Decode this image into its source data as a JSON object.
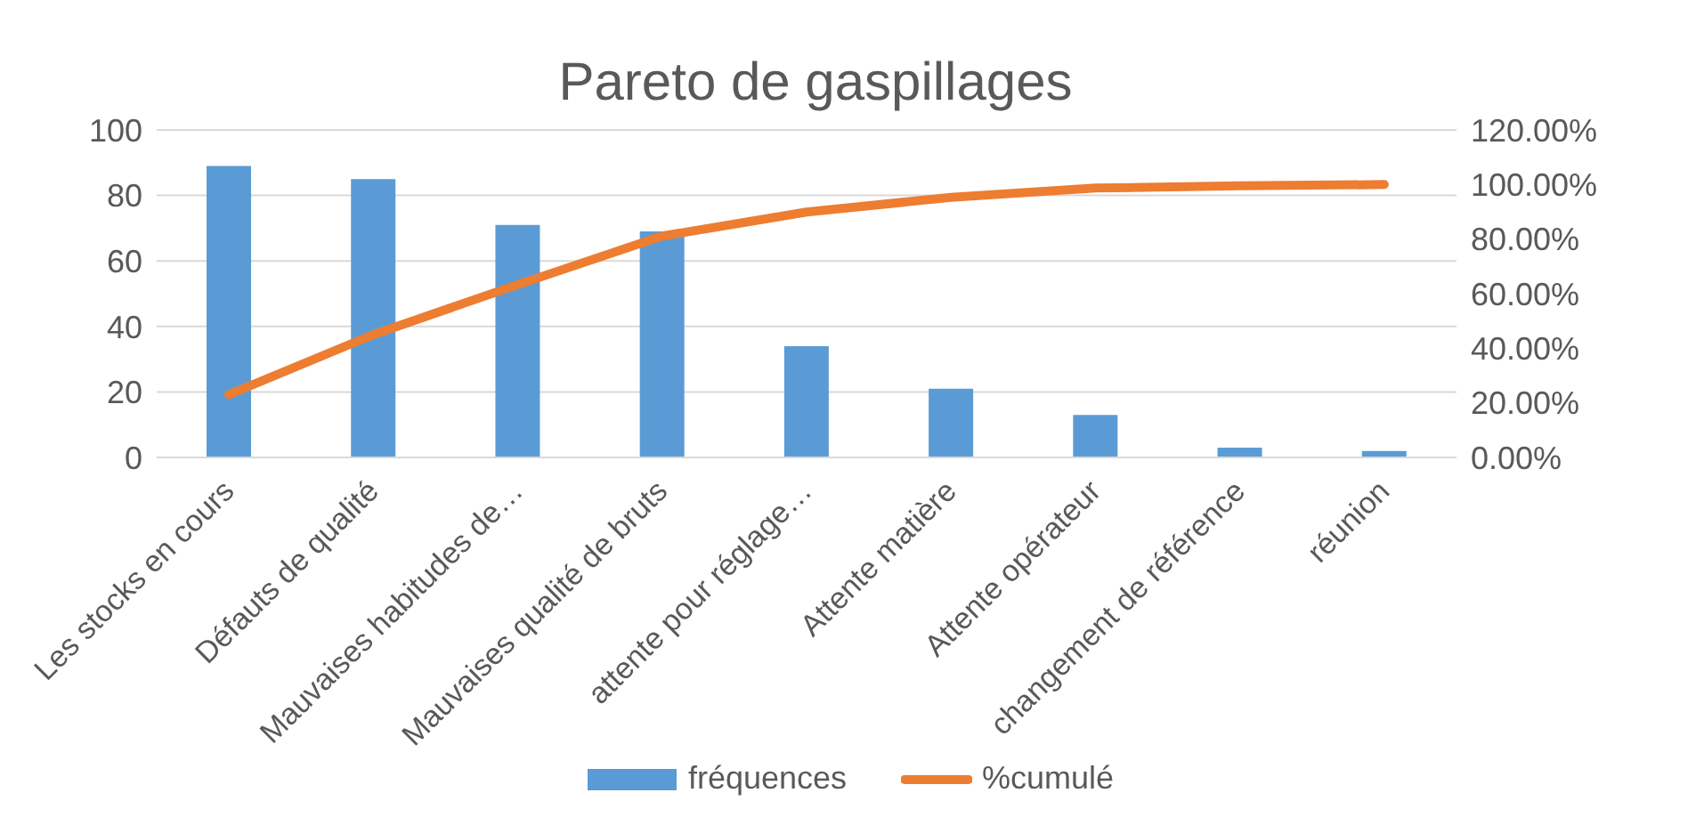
{
  "chart_data": {
    "type": "bar",
    "title": "Pareto de gaspillages",
    "categories": [
      "Les stocks en cours",
      "Défauts de qualité",
      "Mauvaises habitudes de…",
      "Mauvaises qualité de bruts",
      "attente pour réglage…",
      "Attente matière",
      "Attente opérateur",
      "changement de référence",
      "réunion"
    ],
    "series": [
      {
        "name": "fréquences",
        "color": "#5b9bd5",
        "values": [
          89,
          85,
          71,
          69,
          34,
          21,
          13,
          3,
          2
        ]
      },
      {
        "name": "%cumulé",
        "type": "line",
        "axis": "y2",
        "color": "#ed7d31",
        "values": [
          23.0,
          45.0,
          63.3,
          81.1,
          89.9,
          95.3,
          98.7,
          99.5,
          100
        ]
      }
    ],
    "ylim": [
      0,
      100
    ],
    "yticks": [
      0,
      20,
      40,
      60,
      80,
      100
    ],
    "y2lim": [
      0,
      120
    ],
    "y2ticks": [
      {
        "value": 0,
        "label": "0.00%"
      },
      {
        "value": 20,
        "label": "20.00%"
      },
      {
        "value": 40,
        "label": "40.00%"
      },
      {
        "value": 60,
        "label": "60.00%"
      },
      {
        "value": 80,
        "label": "80.00%"
      },
      {
        "value": 100,
        "label": "100.00%"
      },
      {
        "value": 120,
        "label": "120.00%"
      }
    ],
    "grid": "y",
    "legend": "bottom",
    "marker": "none",
    "line_style": "solid"
  }
}
